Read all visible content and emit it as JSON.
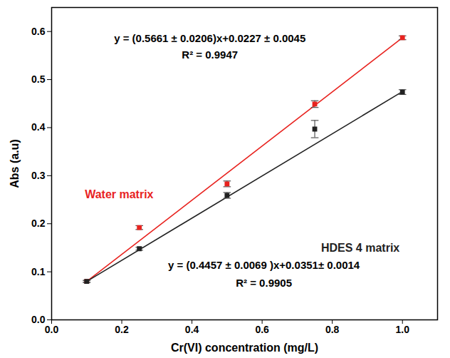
{
  "chart_data": {
    "type": "scatter",
    "x_label": "Cr(VI) concentration (mg/L)",
    "y_label": "Abs (a.u)",
    "xlim": [
      0,
      1.1
    ],
    "xticks": [
      {
        "value": 0,
        "label": "0.0"
      },
      0.2,
      0.4,
      0.6,
      0.8,
      {
        "value": 1,
        "label": "1.0"
      }
    ],
    "ylim": [
      0,
      0.65
    ],
    "yticks": [
      {
        "value": 0,
        "label": "0.0"
      },
      0.1,
      0.2,
      0.3,
      0.4,
      0.5,
      0.6
    ],
    "grid": false,
    "marker": "square",
    "x": [
      0.1,
      0.25,
      0.5,
      0.75,
      1.0
    ],
    "series": [
      {
        "name": "Water matrix",
        "color": "#e8231f",
        "values": [
          0.08,
          0.192,
          0.283,
          0.449,
          0.587
        ],
        "error": [
          0.002,
          0.004,
          0.006,
          0.007,
          0.004
        ],
        "fit": {
          "x": [
            0.1,
            1.0
          ],
          "values": [
            0.08,
            0.587
          ]
        },
        "equation": [
          "y = (0.5661 ± 0.0206)x+0.0227 ± 0.0045",
          "R² = 0.9947"
        ]
      },
      {
        "name": "HDES 4 matrix",
        "color": "#222222",
        "values": [
          0.08,
          0.148,
          0.259,
          0.397,
          0.474
        ],
        "error": [
          0.002,
          0.003,
          0.006,
          0.018,
          0.005
        ],
        "fit": {
          "x": [
            0.1,
            1.0
          ],
          "values": [
            0.08,
            0.475
          ]
        },
        "equation": [
          "y = (0.4457 ± 0.0069 )x+0.0351± 0.0014",
          "R² = 0.9905"
        ]
      }
    ]
  }
}
